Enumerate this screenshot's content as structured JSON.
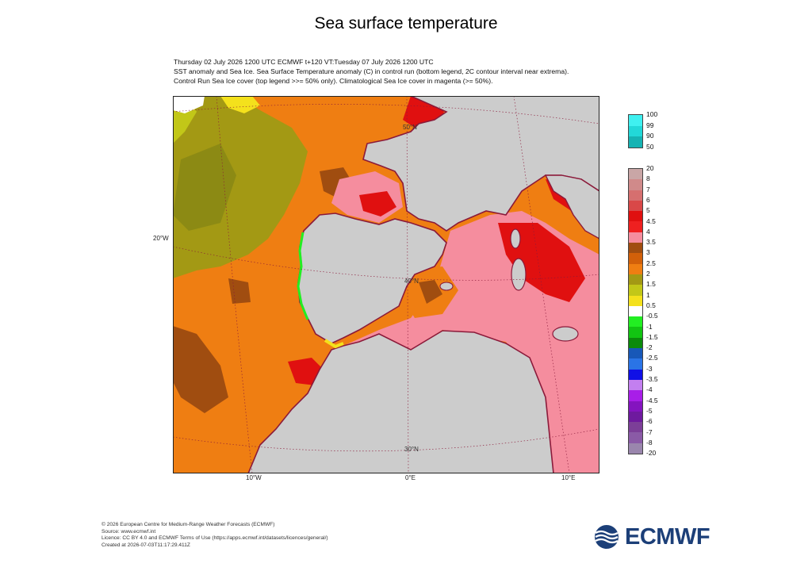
{
  "title": "Sea surface temperature",
  "header": {
    "line1": "Thursday 02 July 2026 1200 UTC  ECMWF  t+120  VT:Tuesday 07 July 2026 1200 UTC",
    "line2": "SST anomaly and Sea Ice. Sea Surface Temperature anomaly (C) in control run (bottom legend, 2C contour interval near extrema).",
    "line3": "Control Run Sea Ice cover (top legend >>= 50% only). Climatological Sea Ice cover in magenta (>= 50%)."
  },
  "map": {
    "lat_labels_inside": [
      "50°N",
      "40°N",
      "30°N"
    ],
    "lat_label_left": "20°W",
    "lon_labels": [
      "10°W",
      "0°E",
      "10°E"
    ],
    "land_color": "#cccccc",
    "coast_color": "#8b1a3a"
  },
  "legend_ice": {
    "labels": [
      "100",
      "99",
      "90",
      "50"
    ],
    "colors": [
      "#3ff0f0",
      "#22d8d8",
      "#16b3b3"
    ]
  },
  "legend_sst": {
    "labels": [
      "20",
      "8",
      "7",
      "6",
      "5",
      "4.5",
      "4",
      "3.5",
      "3",
      "2.5",
      "2",
      "1.5",
      "1",
      "0.5",
      "-0.5",
      "-1",
      "-1.5",
      "-2",
      "-2.5",
      "-3",
      "-3.5",
      "-4",
      "-4.5",
      "-5",
      "-6",
      "-7",
      "-8",
      "-20"
    ],
    "colors": [
      "#c9a6a6",
      "#d08a8a",
      "#d66f6f",
      "#d94848",
      "#e01010",
      "#ee2020",
      "#f58d9e",
      "#a04d10",
      "#d2600a",
      "#ef7e12",
      "#a39914",
      "#c2c718",
      "#f4e11c",
      "#ffffff",
      "#22ee22",
      "#12c412",
      "#0b8a0b",
      "#1858b8",
      "#2a74e6",
      "#1010e6",
      "#c37ff0",
      "#a81ee8",
      "#8414bf",
      "#6e1a9e",
      "#7c3f98",
      "#8a5aa6",
      "#9a86ad"
    ]
  },
  "footer": {
    "line1": "© 2026 European Centre for Medium-Range Weather Forecasts (ECMWF)",
    "line2": "Source: www.ecmwf.int",
    "line3": "Licence: CC BY 4.0 and ECMWF Terms of Use (https://apps.ecmwf.int/datasets/licences/general/)",
    "line4": "Created at 2026-07-03T11:17:29.411Z"
  },
  "logo_text": "ECMWF"
}
